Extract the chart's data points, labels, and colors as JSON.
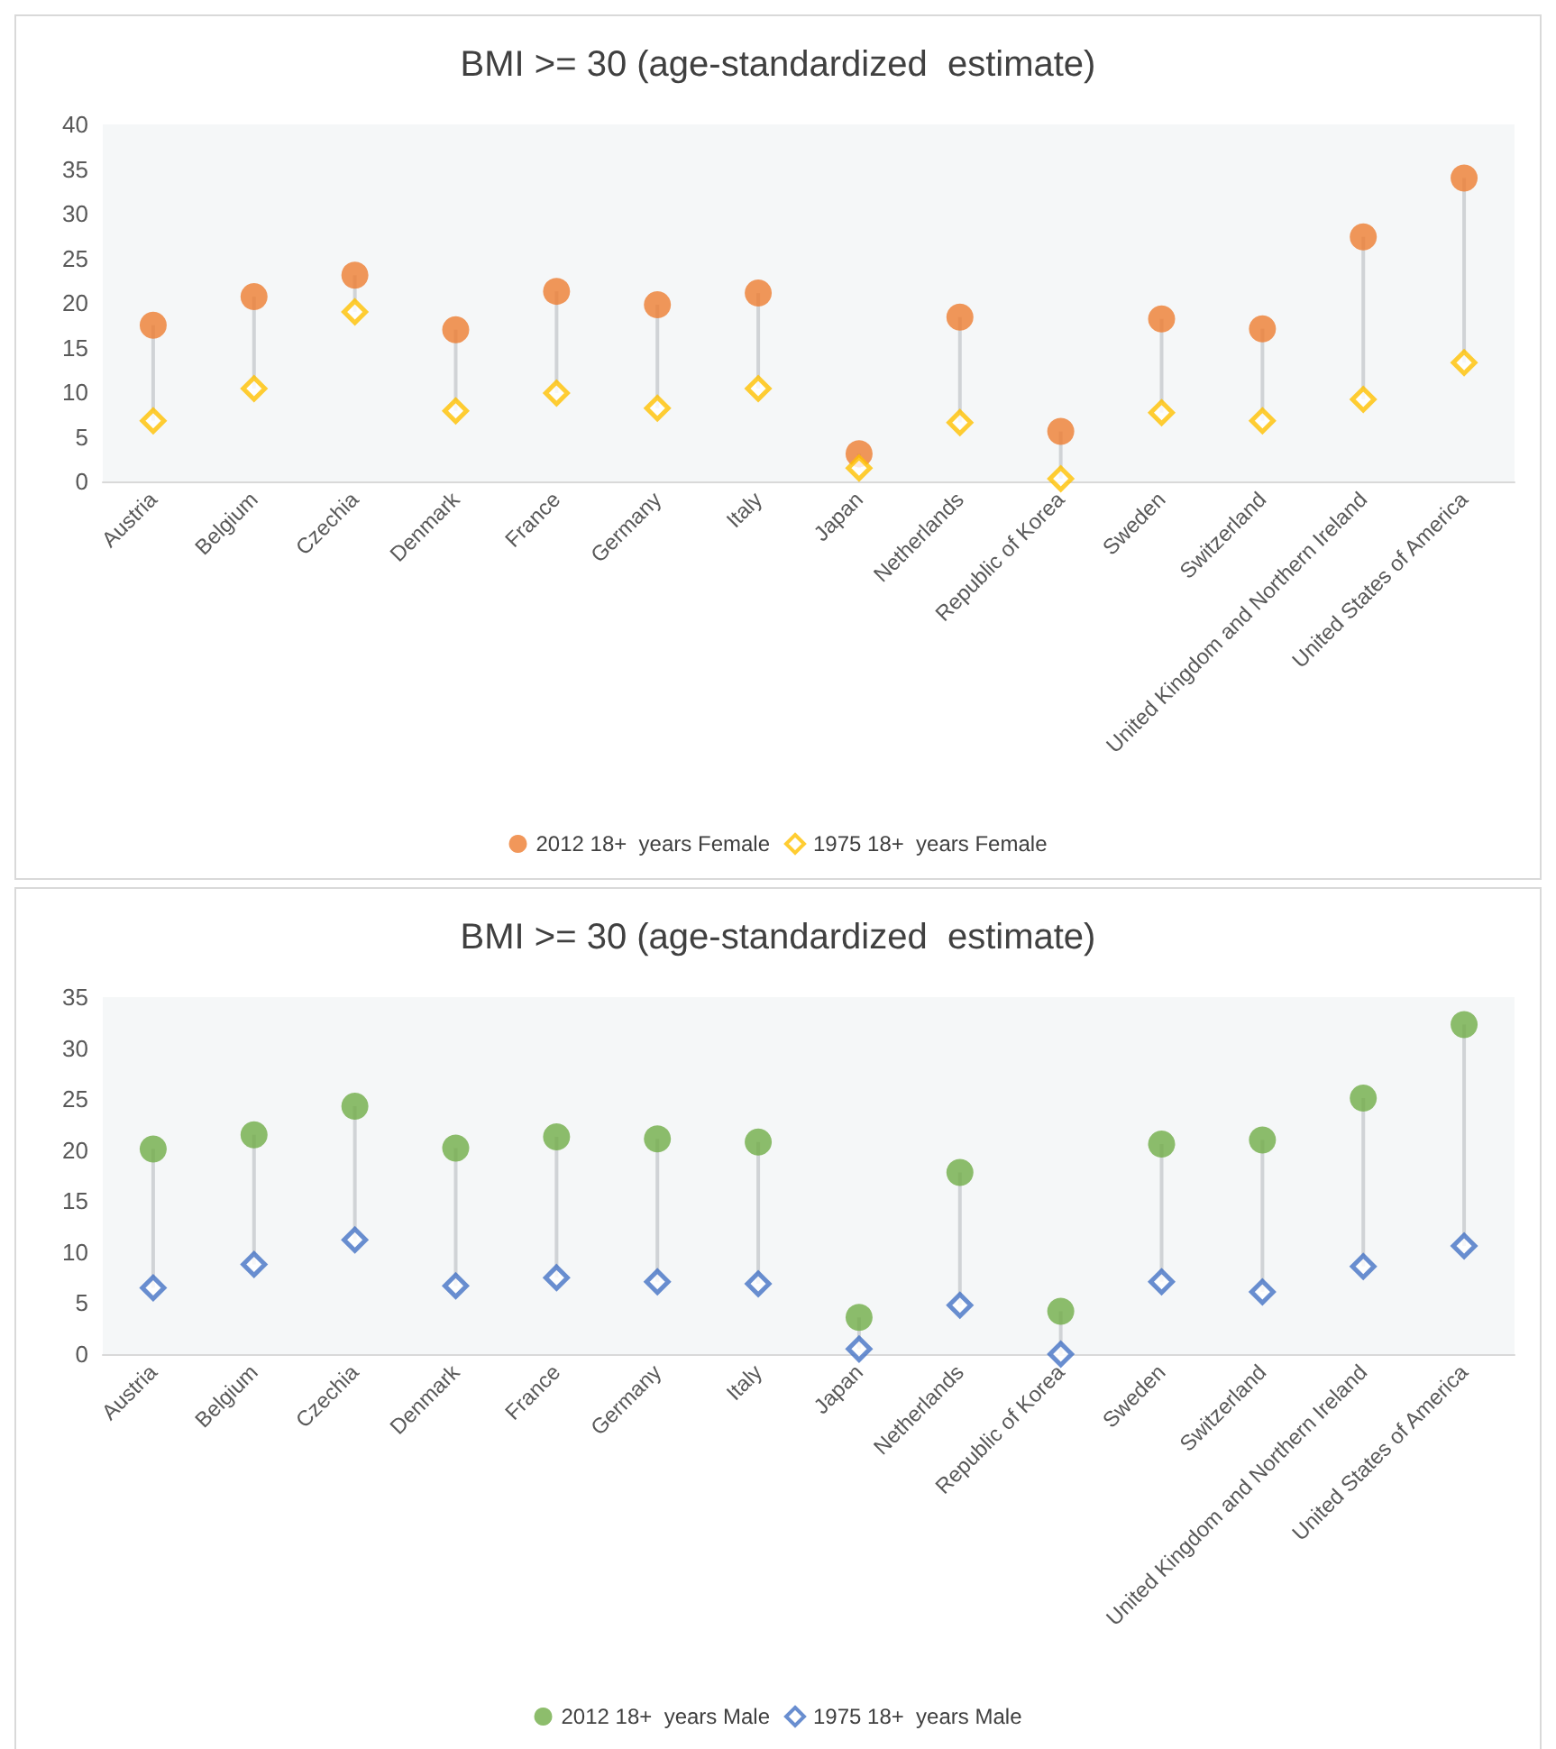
{
  "chart_data": [
    {
      "type": "scatter",
      "title": "BMI >= 30 (age-standardized  estimate)",
      "categories": [
        "Austria",
        "Belgium",
        "Czechia",
        "Denmark",
        "France",
        "Germany",
        "Italy",
        "Japan",
        "Netherlands",
        "Republic of Korea",
        "Sweden",
        "Switzerland",
        "United Kingdom and Northern Ireland",
        "United States of America"
      ],
      "series": [
        {
          "name": "2012 18+  years Female",
          "color": "#ed7d31",
          "marker": "circle",
          "values": [
            17.5,
            20.7,
            23.1,
            17,
            21.3,
            19.8,
            21.1,
            3.1,
            18.4,
            5.6,
            18.2,
            17.1,
            27.4,
            34
          ]
        },
        {
          "name": "1975 18+  years Female",
          "color": "#ffc000",
          "marker": "diamond",
          "values": [
            6.8,
            10.4,
            19,
            7.9,
            9.9,
            8.2,
            10.4,
            1.5,
            6.6,
            0.3,
            7.7,
            6.8,
            9.2,
            13.3
          ]
        }
      ],
      "ylim": [
        0,
        40
      ],
      "yticks": [
        0,
        5,
        10,
        15,
        20,
        25,
        30,
        35,
        40
      ],
      "grid": false,
      "legend": "bottom"
    },
    {
      "type": "scatter",
      "title": "BMI >= 30 (age-standardized  estimate)",
      "categories": [
        "Austria",
        "Belgium",
        "Czechia",
        "Denmark",
        "France",
        "Germany",
        "Italy",
        "Japan",
        "Netherlands",
        "Republic of Korea",
        "Sweden",
        "Switzerland",
        "United Kingdom and Northern Ireland",
        "United States of America"
      ],
      "series": [
        {
          "name": "2012 18+  years Male",
          "color": "#70ad47",
          "marker": "circle",
          "values": [
            20.1,
            21.5,
            24.3,
            20.2,
            21.3,
            21.1,
            20.8,
            3.6,
            17.8,
            4.2,
            20.6,
            21,
            25.1,
            32.3
          ]
        },
        {
          "name": "1975 18+  years Male",
          "color": "#4472c4",
          "marker": "diamond",
          "values": [
            6.5,
            8.8,
            11.2,
            6.7,
            7.5,
            7.1,
            6.9,
            0.5,
            4.8,
            0,
            7.1,
            6.1,
            8.6,
            10.6
          ]
        }
      ],
      "ylim": [
        0,
        35
      ],
      "yticks": [
        0,
        5,
        10,
        15,
        20,
        25,
        30,
        35
      ],
      "grid": false,
      "legend": "bottom"
    }
  ]
}
